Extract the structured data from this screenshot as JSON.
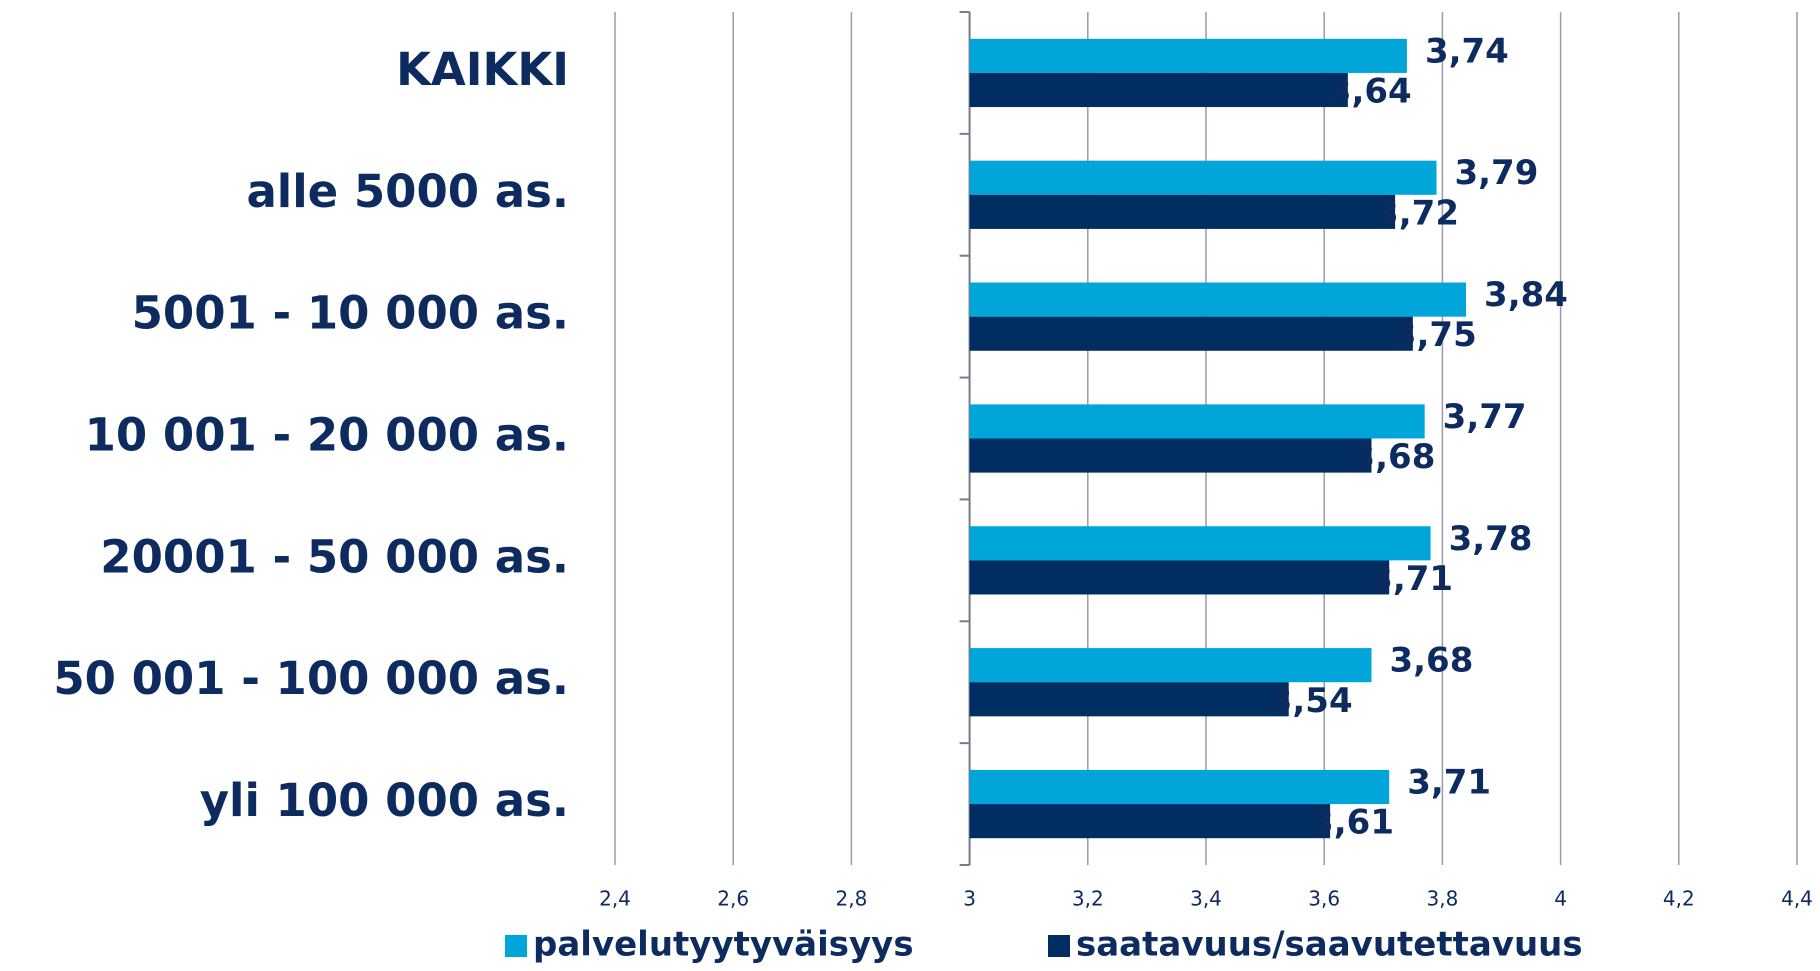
{
  "chart_data": {
    "type": "hbar",
    "categories": [
      "KAIKKI",
      "alle 5000 as.",
      "5001 - 10 000 as.",
      "10 001 - 20 000 as.",
      "20001 - 50 000 as.",
      "50 001 - 100 000 as.",
      "yli 100 000 as."
    ],
    "series": [
      {
        "name": "palvelutyytyväisyys",
        "color": "#00a5d9",
        "values": [
          3.74,
          3.79,
          3.84,
          3.77,
          3.78,
          3.68,
          3.71
        ],
        "value_labels": [
          "3,74",
          "3,79",
          "3,84",
          "3,77",
          "3,78",
          "3,68",
          "3,71"
        ]
      },
      {
        "name": "saatavuus/saavutettavuus",
        "color": "#002d62",
        "values": [
          3.64,
          3.72,
          3.75,
          3.68,
          3.71,
          3.54,
          3.61
        ],
        "value_labels": [
          "3,64",
          "3,72",
          "3,75",
          "3,68",
          "3,71",
          "3,54",
          "3,61"
        ]
      }
    ],
    "xlim": [
      2.4,
      4.4
    ],
    "x_origin": 3,
    "xticks": [
      {
        "value": 2.4,
        "label": "2,4"
      },
      {
        "value": 2.6,
        "label": "2,6"
      },
      {
        "value": 2.8,
        "label": "2,8"
      },
      3,
      {
        "value": 3.2,
        "label": "3,2"
      },
      {
        "value": 3.4,
        "label": "3,4"
      },
      {
        "value": 3.6,
        "label": "3,6"
      },
      {
        "value": 3.8,
        "label": "3,8"
      },
      4,
      {
        "value": 4.2,
        "label": "4,2"
      },
      {
        "value": 4.4,
        "label": "4,4"
      }
    ],
    "grid": true,
    "legend": "bottom"
  }
}
